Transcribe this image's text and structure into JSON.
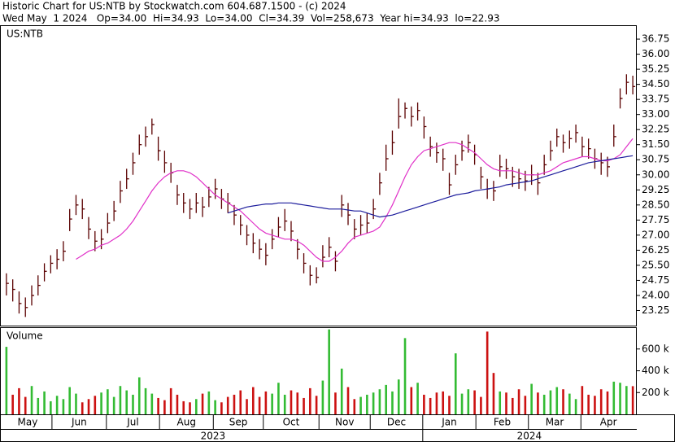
{
  "header": {
    "title": "Historic Chart for US:NTB by Stockwatch.com 604.687.1500 - (c) 2024",
    "summary": "Wed May  1 2024   Op=34.00  Hi=34.93  Lo=34.00  Cl=34.39  Vol=258,673  Year hi=34.93  lo=22.93"
  },
  "chart_data": [
    {
      "type": "hlc",
      "title": "US:NTB",
      "color": "#5a0000",
      "high": [
        25.1,
        24.8,
        24.2,
        23.9,
        24.5,
        25.0,
        25.6,
        26.0,
        26.3,
        26.7,
        28.3,
        29.0,
        28.8,
        27.9,
        27.2,
        27.3,
        28.1,
        28.7,
        29.7,
        30.3,
        31.1,
        32.0,
        32.4,
        32.8,
        31.9,
        31.2,
        30.6,
        29.5,
        29.1,
        28.8,
        29.1,
        28.9,
        29.4,
        29.8,
        29.3,
        29.1,
        28.5,
        28.0,
        27.5,
        27.1,
        26.8,
        26.6,
        27.3,
        27.9,
        28.3,
        27.7,
        26.8,
        26.1,
        25.5,
        25.4,
        26.5,
        26.9,
        26.2,
        29.0,
        28.6,
        27.8,
        28.0,
        28.1,
        28.8,
        30.1,
        31.5,
        32.2,
        33.8,
        33.6,
        33.4,
        33.6,
        32.9,
        31.9,
        31.6,
        31.3,
        30.1,
        31.0,
        31.7,
        32.0,
        31.5,
        30.4,
        29.8,
        29.7,
        31.0,
        30.8,
        30.4,
        30.3,
        30.2,
        30.5,
        30.1,
        31.0,
        31.7,
        32.3,
        32.0,
        32.2,
        32.5,
        31.9,
        31.8,
        31.3,
        31.1,
        30.9,
        32.5,
        34.3,
        35.0,
        34.93
      ],
      "low": [
        24.0,
        23.7,
        23.1,
        22.93,
        23.5,
        24.0,
        24.7,
        25.1,
        25.3,
        25.7,
        27.2,
        28.0,
        27.8,
        26.8,
        26.2,
        26.3,
        27.1,
        27.7,
        28.6,
        29.3,
        30.0,
        31.0,
        31.4,
        32.0,
        30.7,
        30.1,
        29.6,
        28.5,
        28.1,
        27.8,
        28.1,
        27.9,
        28.4,
        28.8,
        28.3,
        28.1,
        27.5,
        27.0,
        26.5,
        26.1,
        25.8,
        25.5,
        26.3,
        26.9,
        27.2,
        26.7,
        25.8,
        25.1,
        24.5,
        24.6,
        25.4,
        25.9,
        25.2,
        27.9,
        27.5,
        26.8,
        27.0,
        27.1,
        27.8,
        29.0,
        30.2,
        31.0,
        32.3,
        32.8,
        32.4,
        32.7,
        31.8,
        30.9,
        30.6,
        30.2,
        29.0,
        30.0,
        30.7,
        31.1,
        30.5,
        29.3,
        28.8,
        28.7,
        29.9,
        29.8,
        29.4,
        29.3,
        29.2,
        29.5,
        29.0,
        30.0,
        30.7,
        31.4,
        31.1,
        31.3,
        31.6,
        30.9,
        30.8,
        30.3,
        30.0,
        29.9,
        31.4,
        33.3,
        34.0,
        34.0
      ],
      "close": [
        24.6,
        24.3,
        23.6,
        23.4,
        24.0,
        24.5,
        25.2,
        25.6,
        25.8,
        26.2,
        27.8,
        28.5,
        28.3,
        27.3,
        26.7,
        26.8,
        27.6,
        28.2,
        29.2,
        29.8,
        30.6,
        31.5,
        31.9,
        32.5,
        31.2,
        30.6,
        30.1,
        29.0,
        28.6,
        28.3,
        28.6,
        28.4,
        28.9,
        29.3,
        28.8,
        28.6,
        28.0,
        27.5,
        27.0,
        26.6,
        26.3,
        26.0,
        26.8,
        27.4,
        27.7,
        27.2,
        26.3,
        25.6,
        25.0,
        24.9,
        25.9,
        26.4,
        25.7,
        28.5,
        28.0,
        27.3,
        27.5,
        27.6,
        28.3,
        29.6,
        30.8,
        31.6,
        32.9,
        33.3,
        32.9,
        33.2,
        32.4,
        31.4,
        31.1,
        30.8,
        29.5,
        30.5,
        31.2,
        31.6,
        31.0,
        29.9,
        29.3,
        29.2,
        30.4,
        30.3,
        29.9,
        29.8,
        29.7,
        30.0,
        29.6,
        30.5,
        31.2,
        31.9,
        31.6,
        31.8,
        32.1,
        31.4,
        31.3,
        30.8,
        30.6,
        30.4,
        31.9,
        33.8,
        34.6,
        34.39
      ],
      "series": [
        {
          "color": "#e030c8",
          "values": [
            null,
            null,
            null,
            null,
            null,
            null,
            null,
            null,
            null,
            null,
            null,
            25.8,
            26.0,
            26.2,
            26.3,
            26.5,
            26.6,
            26.8,
            27.0,
            27.3,
            27.7,
            28.2,
            28.7,
            29.2,
            29.6,
            29.9,
            30.1,
            30.2,
            30.2,
            30.1,
            29.9,
            29.6,
            29.3,
            29.0,
            28.8,
            28.6,
            28.4,
            28.2,
            27.9,
            27.6,
            27.3,
            27.1,
            27.0,
            26.9,
            26.8,
            26.8,
            26.7,
            26.5,
            26.2,
            25.9,
            25.7,
            25.7,
            25.9,
            26.2,
            26.6,
            26.9,
            27.0,
            27.1,
            27.2,
            27.4,
            27.9,
            28.5,
            29.2,
            29.9,
            30.5,
            30.9,
            31.2,
            31.3,
            31.4,
            31.5,
            31.6,
            31.6,
            31.5,
            31.3,
            31.1,
            30.8,
            30.5,
            30.3,
            30.2,
            30.2,
            30.2,
            30.1,
            30.0,
            30.0,
            30.0,
            30.1,
            30.2,
            30.4,
            30.6,
            30.7,
            30.8,
            30.9,
            30.9,
            30.8,
            30.7,
            30.7,
            30.8,
            31.0,
            31.4,
            31.8
          ]
        },
        {
          "color": "#1c1c9c",
          "values": [
            null,
            null,
            null,
            null,
            null,
            null,
            null,
            null,
            null,
            null,
            null,
            null,
            null,
            null,
            null,
            null,
            null,
            null,
            null,
            null,
            null,
            null,
            null,
            null,
            null,
            null,
            null,
            null,
            null,
            null,
            null,
            null,
            null,
            null,
            null,
            28.1,
            28.2,
            28.3,
            28.4,
            28.45,
            28.5,
            28.55,
            28.55,
            28.6,
            28.6,
            28.6,
            28.55,
            28.5,
            28.45,
            28.4,
            28.35,
            28.3,
            28.3,
            28.3,
            28.25,
            28.2,
            28.2,
            28.1,
            28.0,
            27.9,
            27.95,
            28.0,
            28.1,
            28.2,
            28.3,
            28.4,
            28.5,
            28.6,
            28.7,
            28.8,
            28.9,
            29.0,
            29.05,
            29.1,
            29.2,
            29.25,
            29.3,
            29.35,
            29.4,
            29.5,
            29.55,
            29.6,
            29.65,
            29.7,
            29.8,
            29.9,
            30.0,
            30.1,
            30.2,
            30.3,
            30.4,
            30.5,
            30.6,
            30.65,
            30.7,
            30.75,
            30.8,
            30.85,
            30.9,
            30.95
          ]
        }
      ],
      "ylim": [
        22.5,
        37.4
      ],
      "yticks": [
        23.25,
        {
          "value": 24,
          "label": "24.00"
        },
        24.75,
        {
          "value": 25.5,
          "label": "25.50"
        },
        26.25,
        {
          "value": 27,
          "label": "27.00"
        },
        27.75,
        {
          "value": 28.5,
          "label": "28.50"
        },
        29.25,
        {
          "value": 30,
          "label": "30.00"
        },
        30.75,
        {
          "value": 31.5,
          "label": "31.50"
        },
        32.25,
        {
          "value": 33,
          "label": "33.00"
        },
        33.75,
        {
          "value": 34.5,
          "label": "34.50"
        },
        35.25,
        {
          "value": 36,
          "label": "36.00"
        },
        36.75
      ],
      "xticks": [
        {
          "value": 0,
          "label": "May"
        },
        {
          "value": 7.7,
          "label": "Jun"
        },
        {
          "value": 16.3,
          "label": "Jul"
        },
        {
          "value": 24.7,
          "label": "Aug"
        },
        {
          "value": 33.2,
          "label": "Sep"
        },
        {
          "value": 41.1,
          "label": "Oct"
        },
        {
          "value": 49.9,
          "label": "Nov"
        },
        {
          "value": 58,
          "label": "Dec"
        },
        {
          "value": 66.3,
          "label": "Jan"
        },
        {
          "value": 74.7,
          "label": "Feb"
        },
        {
          "value": 83,
          "label": "Mar"
        },
        {
          "value": 91.3,
          "label": "Apr"
        }
      ],
      "year_ticks": [
        {
          "value": 0,
          "label": "2023"
        },
        {
          "value": 66.3,
          "label": "2024"
        }
      ]
    },
    {
      "type": "bar",
      "title": "Volume",
      "up_color": "#33bb33",
      "down_color": "#cc1111",
      "values": [
        620000,
        180000,
        240000,
        160000,
        260000,
        150000,
        210000,
        120000,
        170000,
        140000,
        250000,
        190000,
        110000,
        140000,
        170000,
        200000,
        230000,
        160000,
        260000,
        220000,
        180000,
        340000,
        240000,
        190000,
        150000,
        130000,
        240000,
        180000,
        120000,
        110000,
        140000,
        190000,
        210000,
        130000,
        110000,
        160000,
        180000,
        220000,
        140000,
        250000,
        160000,
        210000,
        190000,
        290000,
        180000,
        220000,
        200000,
        150000,
        240000,
        170000,
        310000,
        780000,
        200000,
        420000,
        250000,
        140000,
        160000,
        180000,
        200000,
        230000,
        270000,
        210000,
        320000,
        700000,
        250000,
        290000,
        180000,
        150000,
        200000,
        210000,
        170000,
        560000,
        190000,
        230000,
        220000,
        160000,
        760000,
        380000,
        210000,
        200000,
        150000,
        230000,
        170000,
        280000,
        200000,
        180000,
        220000,
        250000,
        230000,
        190000,
        140000,
        260000,
        180000,
        170000,
        230000,
        210000,
        300000,
        290000,
        260000,
        258673
      ],
      "ylim": [
        0,
        800000
      ],
      "yticks": [
        {
          "value": 200000,
          "label": "200 k"
        },
        {
          "value": 400000,
          "label": "400 k"
        },
        {
          "value": 600000,
          "label": "600 k"
        }
      ]
    }
  ]
}
